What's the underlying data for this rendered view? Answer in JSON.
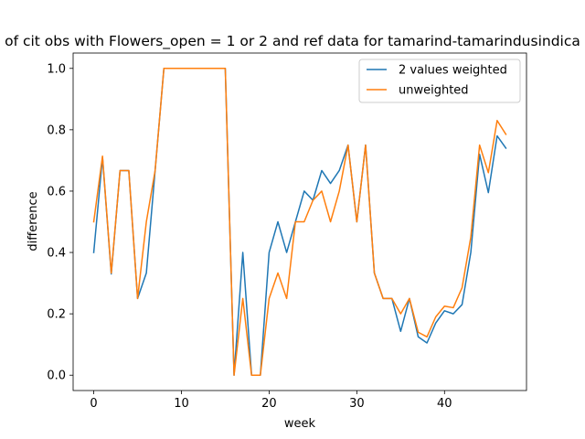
{
  "chart_data": {
    "type": "line",
    "title": "of cit obs with Flowers_open = 1 or 2 and ref data for tamarind-tamarindusindica",
    "xlabel": "week",
    "ylabel": "difference",
    "xlim": [
      -2.35,
      49.35
    ],
    "ylim": [
      -0.05,
      1.05
    ],
    "xticks": [
      0,
      10,
      20,
      30,
      40
    ],
    "yticks": [
      0.0,
      0.2,
      0.4,
      0.6,
      0.8,
      1.0
    ],
    "ytick_labels": [
      "0.0",
      "0.2",
      "0.4",
      "0.6",
      "0.8",
      "1.0"
    ],
    "grid": false,
    "legend_position": "upper right",
    "x": [
      0,
      1,
      2,
      3,
      4,
      5,
      6,
      7,
      8,
      9,
      10,
      11,
      12,
      13,
      14,
      15,
      16,
      17,
      18,
      19,
      20,
      21,
      22,
      23,
      24,
      25,
      26,
      27,
      28,
      29,
      30,
      31,
      32,
      33,
      34,
      35,
      36,
      37,
      38,
      39,
      40,
      41,
      42,
      43,
      44,
      45,
      46,
      47
    ],
    "series": [
      {
        "name": "2 values weighted",
        "color": "#1f77b4",
        "values": [
          0.4,
          0.71,
          0.33,
          0.667,
          0.667,
          0.25,
          0.333,
          0.667,
          1.0,
          1.0,
          1.0,
          1.0,
          1.0,
          1.0,
          1.0,
          1.0,
          0.0,
          0.4,
          0.0,
          0.0,
          0.4,
          0.5,
          0.4,
          0.5,
          0.6,
          0.57,
          0.667,
          0.625,
          0.667,
          0.75,
          0.5,
          0.75,
          0.333,
          0.25,
          0.25,
          0.143,
          0.25,
          0.125,
          0.105,
          0.17,
          0.21,
          0.2,
          0.23,
          0.4,
          0.72,
          0.595,
          0.78,
          0.74
        ]
      },
      {
        "name": "unweighted",
        "color": "#ff7f0e",
        "values": [
          0.5,
          0.714,
          0.333,
          0.667,
          0.667,
          0.25,
          0.5,
          0.667,
          1.0,
          1.0,
          1.0,
          1.0,
          1.0,
          1.0,
          1.0,
          1.0,
          0.0,
          0.25,
          0.0,
          0.0,
          0.25,
          0.333,
          0.25,
          0.5,
          0.5,
          0.57,
          0.6,
          0.5,
          0.6,
          0.75,
          0.5,
          0.75,
          0.333,
          0.25,
          0.25,
          0.2,
          0.25,
          0.14,
          0.125,
          0.19,
          0.225,
          0.22,
          0.285,
          0.45,
          0.75,
          0.66,
          0.83,
          0.785
        ]
      }
    ]
  }
}
